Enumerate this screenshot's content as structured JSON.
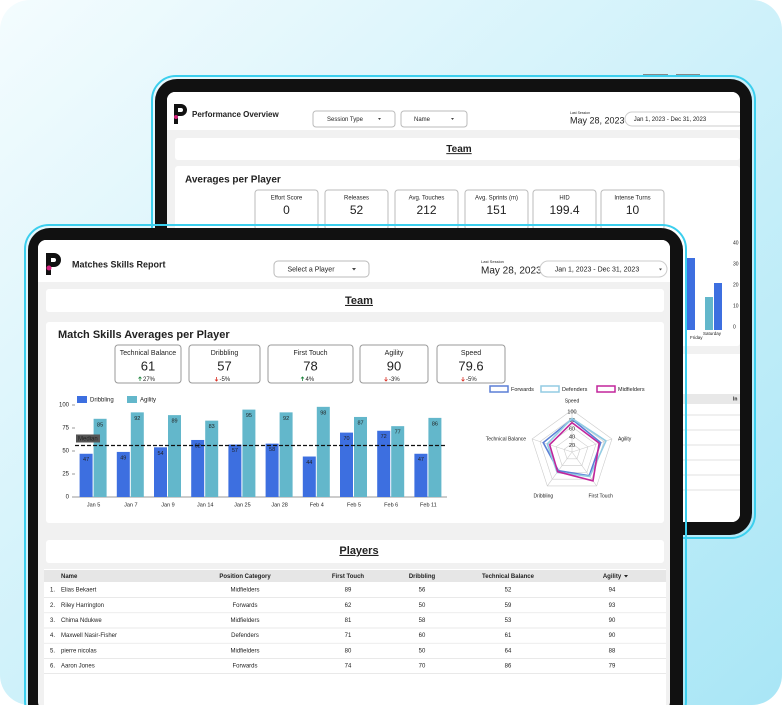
{
  "back_screen": {
    "title": "Performance Overview",
    "filters": [
      "Session Type",
      "Name"
    ],
    "last_session_label": "Last Session",
    "last_session": "May 28, 2023",
    "date_range": "Jan 1, 2023 - Dec 31, 2023",
    "section": "Team",
    "panel_title": "Averages per Player",
    "kpis": [
      {
        "label": "Effort Score",
        "value": "0"
      },
      {
        "label": "Releases",
        "value": "52"
      },
      {
        "label": "Avg. Touches",
        "value": "212"
      },
      {
        "label": "Avg. Sprints (m)",
        "value": "151"
      },
      {
        "label": "HID",
        "value": "199.4"
      },
      {
        "label": "Intense Turns",
        "value": "10"
      }
    ],
    "chart_ticks": [
      "40",
      "30",
      "20",
      "10",
      "0"
    ],
    "chart_categories": [
      "Friday",
      "Saturday"
    ],
    "table_header": "In"
  },
  "front_screen": {
    "title": "Matches Skills Report",
    "filter": "Select a Player",
    "last_session_label": "Last Session",
    "last_session": "May 28, 2023",
    "date_range": "Jan 1, 2023 - Dec 31, 2023",
    "section": "Team",
    "panel_title": "Match Skills Averages per Player",
    "kpis": [
      {
        "label": "Technical Balance",
        "value": "61",
        "change": "27%",
        "direction": "up"
      },
      {
        "label": "Dribbling",
        "value": "57",
        "change": "-5%",
        "direction": "down"
      },
      {
        "label": "First Touch",
        "value": "78",
        "change": "4%",
        "direction": "up"
      },
      {
        "label": "Agility",
        "value": "90",
        "change": "-3%",
        "direction": "down"
      },
      {
        "label": "Speed",
        "value": "79.6",
        "change": "-5%",
        "direction": "down"
      }
    ],
    "players_title": "Players",
    "table": {
      "columns": [
        "Name",
        "Position Category",
        "First Touch",
        "Dribbling",
        "Technical Balance",
        "Agility"
      ],
      "rows": [
        [
          "1.",
          "Elias Bekaert",
          "Midfielders",
          "89",
          "56",
          "52",
          "94"
        ],
        [
          "2.",
          "Riley Harrington",
          "Forwards",
          "62",
          "50",
          "59",
          "93"
        ],
        [
          "3.",
          "Chima Ndukwe",
          "Midfielders",
          "81",
          "58",
          "53",
          "90"
        ],
        [
          "4.",
          "Maxwell Nasir-Fisher",
          "Defenders",
          "71",
          "60",
          "61",
          "90"
        ],
        [
          "5.",
          "pierre nicolas",
          "Midfielders",
          "80",
          "50",
          "64",
          "88"
        ],
        [
          "6.",
          "Aaron Jones",
          "Forwards",
          "74",
          "70",
          "86",
          "79"
        ]
      ]
    }
  },
  "chart_data": [
    {
      "type": "bar",
      "categories": [
        "Jan 5",
        "Jan 7",
        "Jan 9",
        "Jan 14",
        "Jan 25",
        "Jan 28",
        "Feb 4",
        "Feb 5",
        "Feb 6",
        "Feb 11"
      ],
      "series": [
        {
          "name": "Dribbling",
          "color": "#3d6fe0",
          "values": [
            47,
            49,
            54,
            62,
            57,
            58,
            44,
            70,
            72,
            47
          ]
        },
        {
          "name": "Agility",
          "color": "#63b7cb",
          "values": [
            85,
            92,
            89,
            83,
            95,
            92,
            98,
            87,
            77,
            86
          ]
        }
      ],
      "ylim": [
        0,
        100
      ],
      "yticks": [
        0,
        25,
        50,
        75,
        100
      ],
      "reference_line": {
        "label": "Median",
        "value": 56
      }
    },
    {
      "type": "radar",
      "axes": [
        "Speed",
        "Agility",
        "First Touch",
        "Dribbling",
        "Technical Balance"
      ],
      "rlim": [
        0,
        100
      ],
      "rticks": [
        20,
        40,
        60,
        80,
        100
      ],
      "series": [
        {
          "name": "Forwards",
          "color": "#5b7fd6",
          "values": [
            78,
            72,
            70,
            55,
            72
          ]
        },
        {
          "name": "Defenders",
          "color": "#93cce3",
          "values": [
            80,
            85,
            72,
            60,
            62
          ]
        },
        {
          "name": "Midfielders",
          "color": "#c2259b",
          "values": [
            70,
            68,
            85,
            58,
            56
          ]
        }
      ]
    }
  ]
}
